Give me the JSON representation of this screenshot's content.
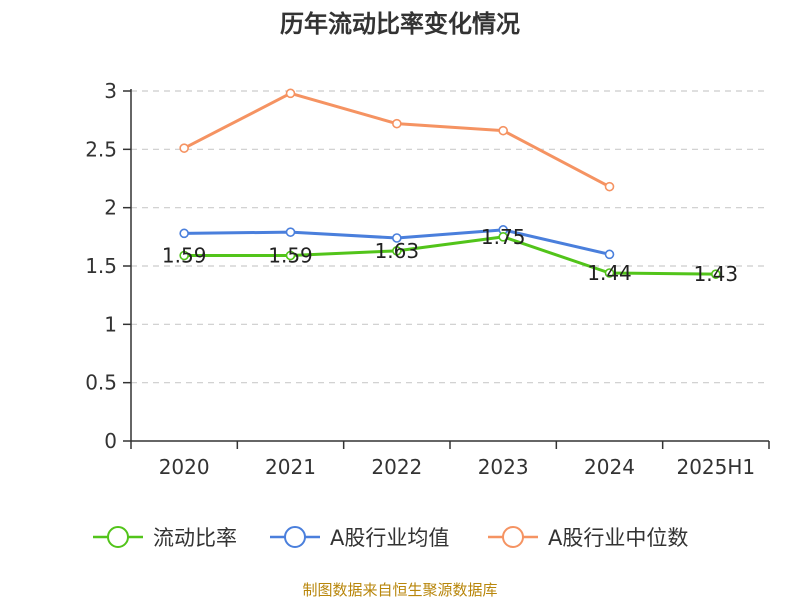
{
  "chart_data": {
    "type": "line",
    "title": "历年流动比率变化情况",
    "categories": [
      "2020",
      "2021",
      "2022",
      "2023",
      "2024",
      "2025H1"
    ],
    "ylim": [
      0,
      3
    ],
    "yticks": [
      "0",
      "0.5",
      "1",
      "1.5",
      "2",
      "2.5",
      "3"
    ],
    "ytick_values": [
      0,
      0.5,
      1,
      1.5,
      2,
      2.5,
      3
    ],
    "grid": true,
    "legend_position": "bottom",
    "series": [
      {
        "name": "流动比率",
        "color": "#52c41a",
        "values": [
          1.59,
          1.59,
          1.63,
          1.75,
          1.44,
          1.43
        ],
        "labels": [
          "1.59",
          "1.59",
          "1.63",
          "1.75",
          "1.44",
          "1.43"
        ]
      },
      {
        "name": "A股行业均值",
        "color": "#4a7fdc",
        "values": [
          1.78,
          1.79,
          1.74,
          1.81,
          1.6,
          null
        ]
      },
      {
        "name": "A股行业中位数",
        "color": "#f59362",
        "values": [
          2.51,
          2.98,
          2.72,
          2.66,
          2.18,
          null
        ]
      }
    ],
    "source": "制图数据来自恒生聚源数据库"
  }
}
